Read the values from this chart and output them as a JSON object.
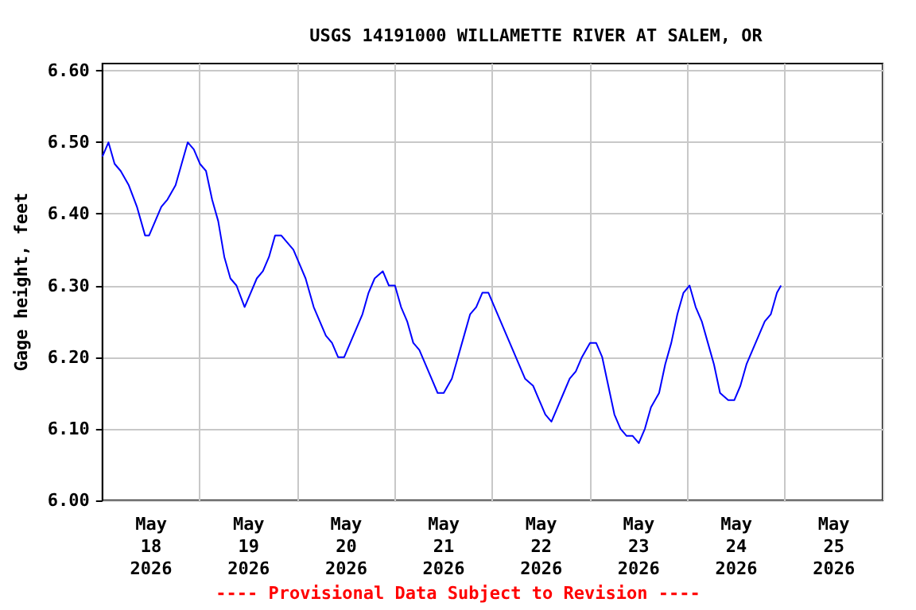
{
  "chart_data": {
    "type": "line",
    "title": "USGS 14191000 WILLAMETTE RIVER AT SALEM, OR",
    "ylabel": "Gage height, feet",
    "annotations": [
      "---- Provisional Data Subject to Revision ----"
    ],
    "xlim": [
      "2026-05-18T00:00",
      "2026-05-26T00:00"
    ],
    "xticks": [
      {
        "value": "2026-05-18T00:00",
        "label": null
      },
      {
        "value": "2026-05-18T12:00",
        "label": "May\n18\n2026"
      },
      {
        "value": "2026-05-19T00:00",
        "label": null
      },
      {
        "value": "2026-05-19T12:00",
        "label": "May\n19\n2026"
      },
      {
        "value": "2026-05-20T00:00",
        "label": null
      },
      {
        "value": "2026-05-20T12:00",
        "label": "May\n20\n2026"
      },
      {
        "value": "2026-05-21T00:00",
        "label": null
      },
      {
        "value": "2026-05-21T12:00",
        "label": "May\n21\n2026"
      },
      {
        "value": "2026-05-22T00:00",
        "label": null
      },
      {
        "value": "2026-05-22T12:00",
        "label": "May\n22\n2026"
      },
      {
        "value": "2026-05-23T00:00",
        "label": null
      },
      {
        "value": "2026-05-23T12:00",
        "label": "May\n23\n2026"
      },
      {
        "value": "2026-05-24T00:00",
        "label": null
      },
      {
        "value": "2026-05-24T12:00",
        "label": "May\n24\n2026"
      },
      {
        "value": "2026-05-25T00:00",
        "label": null
      },
      {
        "value": "2026-05-25T12:00",
        "label": "May\n25\n2026"
      },
      {
        "value": "2026-05-26T00:00",
        "label": null
      }
    ],
    "ylim": [
      6.0,
      6.61
    ],
    "yticks": [
      {
        "value": 6.0,
        "label": "6.00"
      },
      {
        "value": 6.1,
        "label": "6.10"
      },
      {
        "value": 6.2,
        "label": "6.20"
      },
      {
        "value": 6.3,
        "label": "6.30"
      },
      {
        "value": 6.4,
        "label": "6.40"
      },
      {
        "value": 6.5,
        "label": "6.50"
      },
      {
        "value": 6.6,
        "label": "6.60"
      }
    ],
    "grid": true,
    "marker": "none",
    "line_style": "solid",
    "series": [
      {
        "color": "#0000ff",
        "x": [
          "2026-05-18T00:00",
          "2026-05-18T01:30",
          "2026-05-18T03:00",
          "2026-05-18T04:30",
          "2026-05-18T06:30",
          "2026-05-18T08:30",
          "2026-05-18T10:30",
          "2026-05-18T11:30",
          "2026-05-18T13:00",
          "2026-05-18T14:30",
          "2026-05-18T16:00",
          "2026-05-18T18:00",
          "2026-05-18T19:30",
          "2026-05-18T21:00",
          "2026-05-18T22:30",
          "2026-05-19T00:00",
          "2026-05-19T01:30",
          "2026-05-19T03:00",
          "2026-05-19T04:30",
          "2026-05-19T06:00",
          "2026-05-19T07:30",
          "2026-05-19T09:00",
          "2026-05-19T11:00",
          "2026-05-19T12:30",
          "2026-05-19T14:00",
          "2026-05-19T15:30",
          "2026-05-19T17:00",
          "2026-05-19T18:30",
          "2026-05-19T20:00",
          "2026-05-19T21:30",
          "2026-05-19T23:00",
          "2026-05-20T00:30",
          "2026-05-20T02:00",
          "2026-05-20T04:00",
          "2026-05-20T05:30",
          "2026-05-20T07:00",
          "2026-05-20T08:30",
          "2026-05-20T10:00",
          "2026-05-20T11:30",
          "2026-05-20T13:00",
          "2026-05-20T14:30",
          "2026-05-20T16:00",
          "2026-05-20T17:30",
          "2026-05-20T19:00",
          "2026-05-20T21:00",
          "2026-05-20T22:30",
          "2026-05-21T00:00",
          "2026-05-21T01:30",
          "2026-05-21T03:00",
          "2026-05-21T04:30",
          "2026-05-21T06:00",
          "2026-05-21T07:30",
          "2026-05-21T09:00",
          "2026-05-21T10:30",
          "2026-05-21T12:00",
          "2026-05-21T14:00",
          "2026-05-21T15:30",
          "2026-05-21T17:00",
          "2026-05-21T18:30",
          "2026-05-21T20:00",
          "2026-05-21T21:30",
          "2026-05-21T23:00",
          "2026-05-22T00:30",
          "2026-05-22T02:00",
          "2026-05-22T03:30",
          "2026-05-22T05:00",
          "2026-05-22T06:30",
          "2026-05-22T08:00",
          "2026-05-22T10:00",
          "2026-05-22T11:30",
          "2026-05-22T13:00",
          "2026-05-22T14:30",
          "2026-05-22T16:00",
          "2026-05-22T17:30",
          "2026-05-22T19:00",
          "2026-05-22T20:30",
          "2026-05-22T22:00",
          "2026-05-23T00:00",
          "2026-05-23T01:30",
          "2026-05-23T03:00",
          "2026-05-23T04:30",
          "2026-05-23T06:00",
          "2026-05-23T07:30",
          "2026-05-23T09:00",
          "2026-05-23T10:30",
          "2026-05-23T12:00",
          "2026-05-23T13:30",
          "2026-05-23T15:00",
          "2026-05-23T17:00",
          "2026-05-23T18:30",
          "2026-05-23T20:00",
          "2026-05-23T21:30",
          "2026-05-23T23:00",
          "2026-05-24T00:30",
          "2026-05-24T02:00",
          "2026-05-24T03:30",
          "2026-05-24T05:00",
          "2026-05-24T06:30",
          "2026-05-24T08:00",
          "2026-05-24T10:00",
          "2026-05-24T11:30",
          "2026-05-24T13:00",
          "2026-05-24T14:30",
          "2026-05-24T16:00",
          "2026-05-24T17:30",
          "2026-05-24T19:00",
          "2026-05-24T20:30",
          "2026-05-24T22:00",
          "2026-05-24T23:00"
        ],
        "values": [
          6.48,
          6.5,
          6.47,
          6.46,
          6.44,
          6.41,
          6.37,
          6.37,
          6.39,
          6.41,
          6.42,
          6.44,
          6.47,
          6.5,
          6.49,
          6.47,
          6.46,
          6.42,
          6.39,
          6.34,
          6.31,
          6.3,
          6.27,
          6.29,
          6.31,
          6.32,
          6.34,
          6.37,
          6.37,
          6.36,
          6.35,
          6.33,
          6.31,
          6.27,
          6.25,
          6.23,
          6.22,
          6.2,
          6.2,
          6.22,
          6.24,
          6.26,
          6.29,
          6.31,
          6.32,
          6.3,
          6.3,
          6.27,
          6.25,
          6.22,
          6.21,
          6.19,
          6.17,
          6.15,
          6.15,
          6.17,
          6.2,
          6.23,
          6.26,
          6.27,
          6.29,
          6.29,
          6.27,
          6.25,
          6.23,
          6.21,
          6.19,
          6.17,
          6.16,
          6.14,
          6.12,
          6.11,
          6.13,
          6.15,
          6.17,
          6.18,
          6.2,
          6.22,
          6.22,
          6.2,
          6.16,
          6.12,
          6.1,
          6.09,
          6.09,
          6.08,
          6.1,
          6.13,
          6.15,
          6.19,
          6.22,
          6.26,
          6.29,
          6.3,
          6.27,
          6.25,
          6.22,
          6.19,
          6.15,
          6.14,
          6.14,
          6.16,
          6.19,
          6.21,
          6.23,
          6.25,
          6.26,
          6.29,
          6.3
        ]
      }
    ]
  }
}
